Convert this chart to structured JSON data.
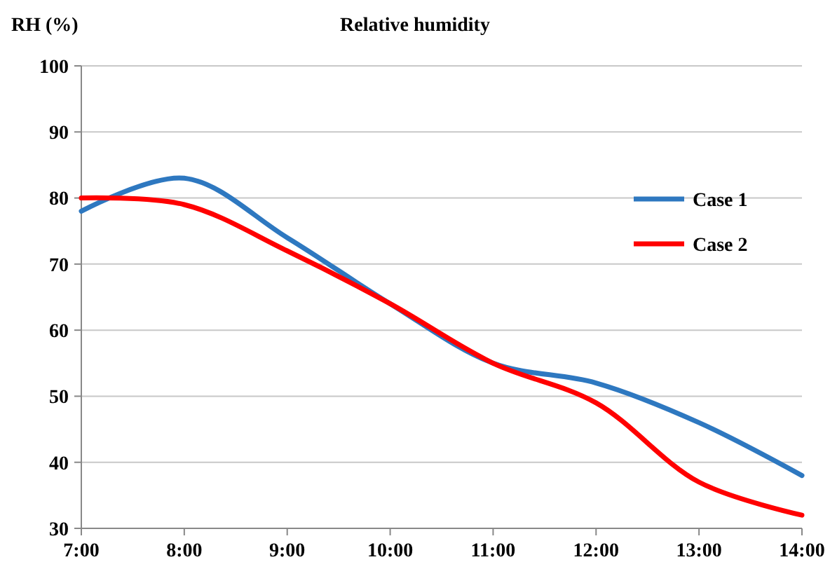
{
  "chart_data": {
    "type": "line",
    "title": "Relative humidity",
    "ylabel": "RH (%)",
    "x": [
      7,
      8,
      9,
      10,
      11,
      12,
      13,
      14
    ],
    "series": [
      {
        "name": "Case 1",
        "color": "#2e78c0",
        "values": [
          78,
          83,
          74,
          64,
          55,
          52,
          46,
          38
        ]
      },
      {
        "name": "Case 2",
        "color": "#ff0000",
        "values": [
          80,
          79,
          72,
          64,
          55,
          49,
          37,
          32
        ]
      }
    ],
    "xlim": [
      7,
      14
    ],
    "xticks": [
      {
        "value": 7,
        "label": "7:00"
      },
      {
        "value": 8,
        "label": "8:00"
      },
      {
        "value": 9,
        "label": "9:00"
      },
      {
        "value": 10,
        "label": "10:00"
      },
      {
        "value": 11,
        "label": "11:00"
      },
      {
        "value": 12,
        "label": "12:00"
      },
      {
        "value": 13,
        "label": "13:00"
      },
      {
        "value": 14,
        "label": "14:00"
      }
    ],
    "ylim": [
      30,
      100
    ],
    "yticks": [
      30,
      40,
      50,
      60,
      70,
      80,
      90,
      100
    ],
    "grid": "y",
    "legend": "top right",
    "marker": "none",
    "line_style": "solid"
  }
}
